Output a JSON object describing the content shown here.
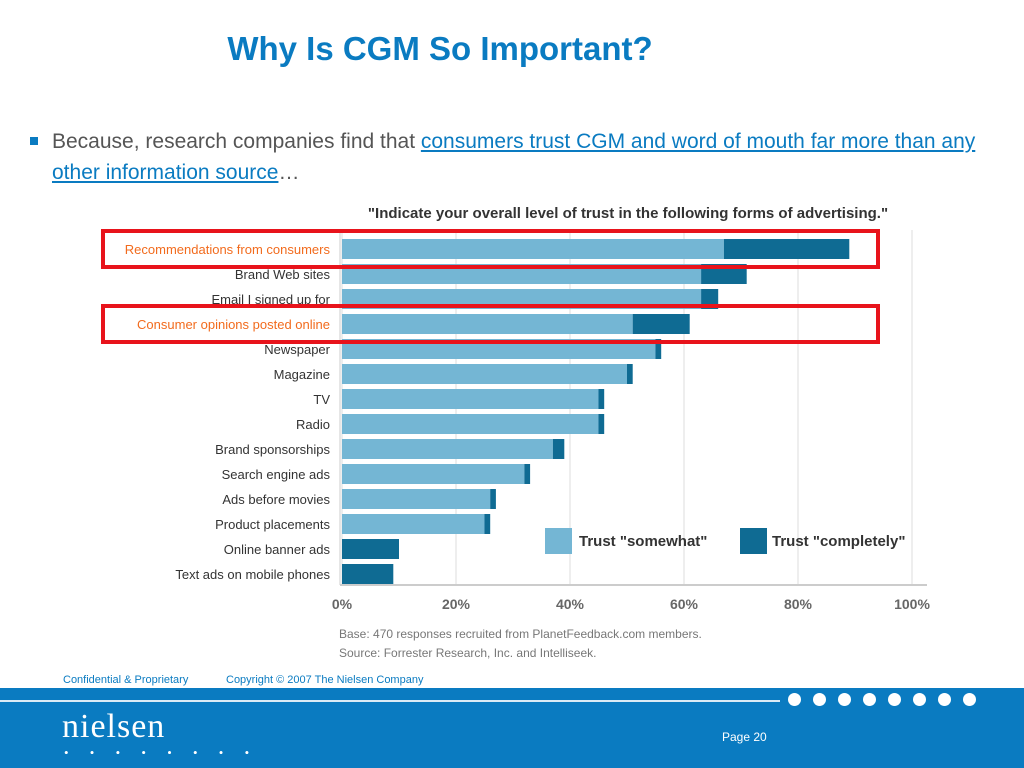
{
  "title": "Why Is CGM So Important?",
  "bullet": {
    "prefix": "Because, research companies find that ",
    "link_text": "consumers trust CGM and word of mouth far more than any other information source",
    "suffix": "…"
  },
  "chart_data": {
    "type": "bar",
    "orientation": "horizontal",
    "stacked": true,
    "title": "\"Indicate your overall level of trust in the following forms of advertising.\"",
    "categories": [
      "Recommendations from consumers",
      "Brand Web sites",
      "Email I signed up for",
      "Consumer opinions posted online",
      "Newspaper",
      "Magazine",
      "TV",
      "Radio",
      "Brand sponsorships",
      "Search engine ads",
      "Ads before movies",
      "Product placements",
      "Online banner ads",
      "Text ads on mobile phones"
    ],
    "highlighted_categories": [
      "Recommendations from consumers",
      "Consumer opinions posted online"
    ],
    "series": [
      {
        "name": "Trust \"somewhat\"",
        "color": "#74b6d4",
        "values": [
          67,
          63,
          63,
          51,
          55,
          50,
          45,
          45,
          37,
          32,
          26,
          25,
          0,
          0
        ]
      },
      {
        "name": "Trust \"completely\"",
        "color": "#0f6b93",
        "values": [
          22,
          8,
          3,
          10,
          1,
          1,
          1,
          1,
          2,
          1,
          1,
          1,
          10,
          9
        ]
      }
    ],
    "xlim": [
      0,
      100
    ],
    "xticks": [
      "0%",
      "20%",
      "40%",
      "60%",
      "80%",
      "100%"
    ],
    "grid": true,
    "legend_position": "bottom-right",
    "highlight_color": "#e8131b",
    "label_highlight_color": "#f26b1d",
    "notes": [
      "Base: 470 responses recruited from PlanetFeedback.com members.",
      "Source: Forrester Research, Inc. and Intelliseek."
    ]
  },
  "footer": {
    "confidential": "Confidential & Proprietary",
    "copyright": "Copyright © 2007 The Nielsen Company",
    "page": "Page 20",
    "logo": "nielsen",
    "logo_dots": "• • • • • • • •"
  }
}
